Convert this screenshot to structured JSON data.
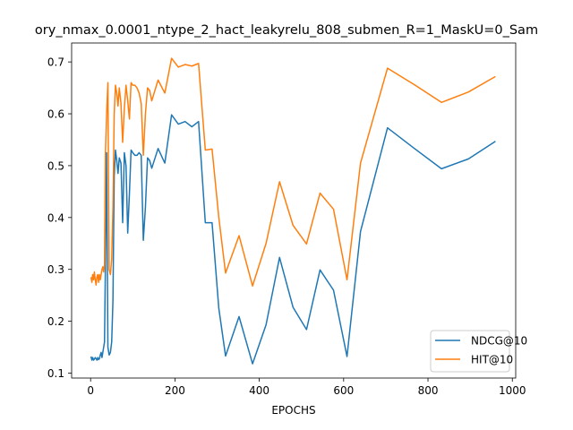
{
  "chart_data": {
    "type": "line",
    "title": "ory_nmax_0.0001_ntype_2_hact_leakyrelu_808_submen_R=1_MaskU=0_Sam",
    "xlabel": "EPOCHS",
    "ylabel": "",
    "xlim": [
      -45,
      1008
    ],
    "ylim": [
      0.0905,
      0.7365
    ],
    "xticks": [
      0,
      200,
      400,
      600,
      800,
      1000
    ],
    "yticks": [
      0.1,
      0.2,
      0.3,
      0.4,
      0.5,
      0.6,
      0.7
    ],
    "xtick_labels": [
      "0",
      "200",
      "400",
      "600",
      "800",
      "1000"
    ],
    "ytick_labels": [
      "0.1",
      "0.2",
      "0.3",
      "0.4",
      "0.5",
      "0.6",
      "0.7"
    ],
    "legend_position": "lower-right",
    "series": [
      {
        "name": "NDCG@10",
        "color": "#1f77b4",
        "x": [
          1,
          3,
          5,
          7,
          9,
          11,
          13,
          15,
          17,
          19,
          21,
          23,
          25,
          27,
          29,
          31,
          33,
          35,
          38,
          41,
          44,
          47,
          50,
          53,
          56,
          59,
          62,
          65,
          68,
          72,
          76,
          80,
          84,
          88,
          92,
          96,
          100,
          105,
          110,
          115,
          120,
          125,
          130,
          135,
          140,
          145,
          160,
          176,
          192,
          208,
          224,
          240,
          256,
          272,
          288,
          304,
          320,
          352,
          384,
          416,
          448,
          480,
          512,
          544,
          576,
          608,
          640,
          704,
          768,
          832,
          896,
          960
        ],
        "y": [
          0.132,
          0.125,
          0.13,
          0.125,
          0.127,
          0.13,
          0.128,
          0.125,
          0.13,
          0.126,
          0.128,
          0.135,
          0.14,
          0.13,
          0.14,
          0.15,
          0.16,
          0.3,
          0.525,
          0.15,
          0.135,
          0.14,
          0.16,
          0.24,
          0.48,
          0.53,
          0.51,
          0.485,
          0.515,
          0.505,
          0.39,
          0.525,
          0.5,
          0.37,
          0.445,
          0.53,
          0.525,
          0.52,
          0.52,
          0.525,
          0.52,
          0.356,
          0.42,
          0.515,
          0.51,
          0.495,
          0.533,
          0.505,
          0.598,
          0.58,
          0.585,
          0.575,
          0.585,
          0.39,
          0.39,
          0.225,
          0.133,
          0.209,
          0.118,
          0.193,
          0.323,
          0.227,
          0.184,
          0.299,
          0.26,
          0.132,
          0.373,
          0.573,
          0.533,
          0.494,
          0.513,
          0.547
        ]
      },
      {
        "name": "HIT@10",
        "color": "#ff7f0e",
        "x": [
          1,
          3,
          5,
          7,
          9,
          11,
          13,
          15,
          17,
          19,
          21,
          23,
          25,
          27,
          29,
          31,
          33,
          35,
          38,
          41,
          44,
          47,
          50,
          53,
          56,
          59,
          62,
          65,
          68,
          72,
          76,
          80,
          84,
          88,
          92,
          96,
          100,
          105,
          110,
          115,
          120,
          125,
          130,
          135,
          140,
          145,
          160,
          176,
          192,
          208,
          224,
          240,
          256,
          272,
          288,
          304,
          320,
          352,
          384,
          416,
          448,
          480,
          512,
          544,
          576,
          608,
          640,
          704,
          768,
          832,
          896,
          960
        ],
        "y": [
          0.285,
          0.275,
          0.29,
          0.28,
          0.295,
          0.28,
          0.27,
          0.285,
          0.29,
          0.275,
          0.29,
          0.28,
          0.29,
          0.3,
          0.305,
          0.295,
          0.31,
          0.52,
          0.6,
          0.66,
          0.3,
          0.29,
          0.32,
          0.42,
          0.6,
          0.655,
          0.64,
          0.615,
          0.65,
          0.62,
          0.545,
          0.61,
          0.655,
          0.625,
          0.59,
          0.66,
          0.655,
          0.655,
          0.65,
          0.64,
          0.62,
          0.52,
          0.6,
          0.65,
          0.645,
          0.625,
          0.665,
          0.64,
          0.707,
          0.69,
          0.695,
          0.692,
          0.697,
          0.53,
          0.532,
          0.4,
          0.293,
          0.365,
          0.268,
          0.35,
          0.469,
          0.385,
          0.349,
          0.447,
          0.416,
          0.28,
          0.505,
          0.688,
          0.656,
          0.622,
          0.642,
          0.672
        ]
      }
    ]
  }
}
